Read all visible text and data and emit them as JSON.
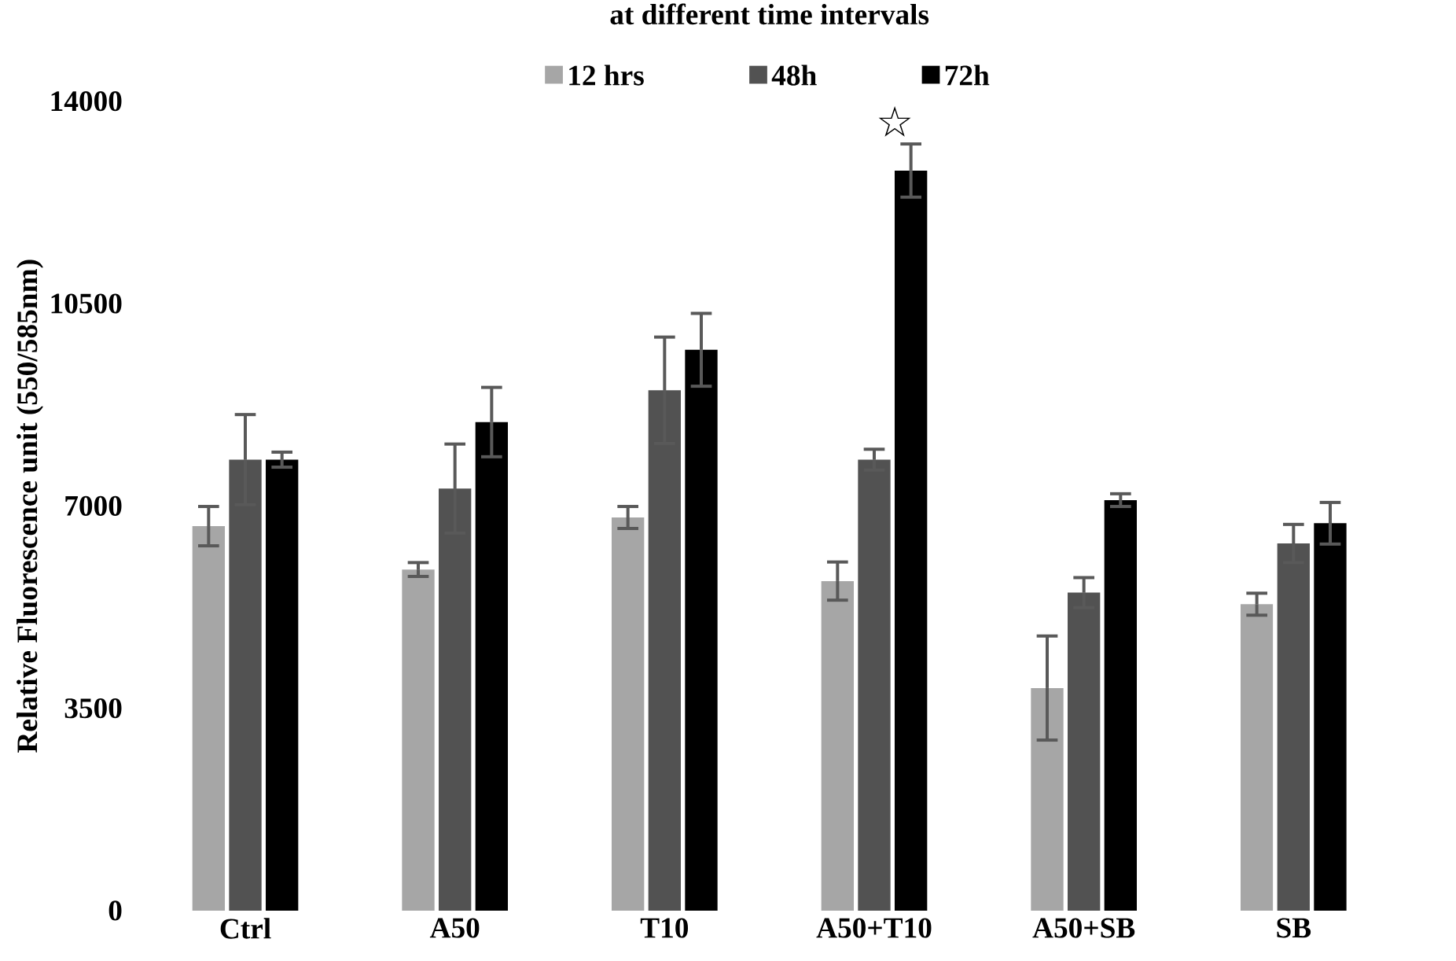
{
  "chart_data": {
    "type": "bar",
    "title": "at different time intervals",
    "ylabel": "Relative Fluorescence unit (550/585nm)",
    "categories": [
      "Ctrl",
      "A50",
      "T10",
      "A50+T10",
      "A50+SB",
      "SB"
    ],
    "series": [
      {
        "name": "12 hrs",
        "color": "#a6a6a6",
        "values": [
          6650,
          5900,
          6800,
          5700,
          3850,
          5300
        ],
        "errors": [
          340,
          120,
          190,
          330,
          900,
          190
        ]
      },
      {
        "name": "48h",
        "color": "#525252",
        "values": [
          7800,
          7300,
          9000,
          7800,
          5500,
          6350
        ],
        "errors": [
          780,
          770,
          920,
          180,
          260,
          330
        ]
      },
      {
        "name": "72h",
        "color": "#000000",
        "values": [
          7800,
          8450,
          9700,
          12800,
          7100,
          6700
        ],
        "errors": [
          130,
          600,
          630,
          460,
          110,
          360
        ]
      }
    ],
    "ylim": [
      0,
      14000
    ],
    "yticks": [
      0,
      3500,
      7000,
      10500,
      14000
    ],
    "grid": false,
    "legend": "top",
    "annotations": [
      "☆"
    ]
  }
}
